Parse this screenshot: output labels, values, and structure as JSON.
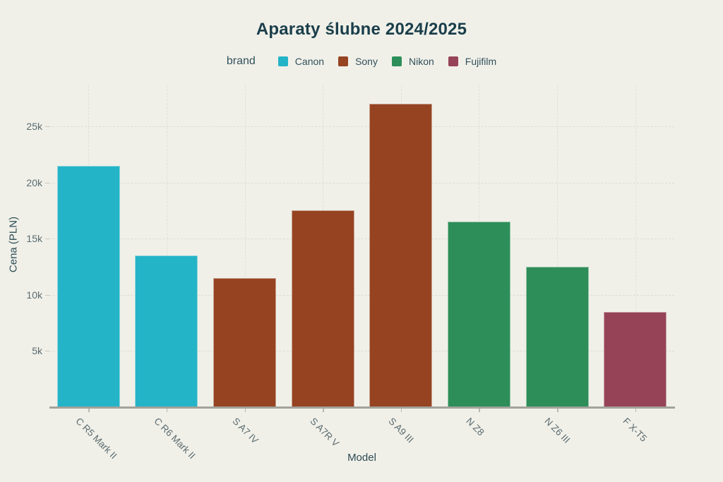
{
  "title": "Aparaty ślubne 2024/2025",
  "legend": {
    "label": "brand",
    "items": [
      {
        "name": "Canon",
        "color": "#24b4c8"
      },
      {
        "name": "Sony",
        "color": "#964322"
      },
      {
        "name": "Nikon",
        "color": "#2d8e59"
      },
      {
        "name": "Fujifilm",
        "color": "#964357"
      }
    ]
  },
  "chart_data": {
    "type": "bar",
    "title": "Aparaty ślubne 2024/2025",
    "xlabel": "Model",
    "ylabel": "Cena (PLN)",
    "legend_title": "brand",
    "legend_position": "top",
    "grid": true,
    "ylim": [
      0,
      28650
    ],
    "yticks": [
      {
        "value": 5000,
        "label": "5k"
      },
      {
        "value": 10000,
        "label": "10k"
      },
      {
        "value": 15000,
        "label": "15k"
      },
      {
        "value": 20000,
        "label": "20k"
      },
      {
        "value": 25000,
        "label": "25k"
      }
    ],
    "bars": [
      {
        "model": "C R5 Mark II",
        "brand": "Canon",
        "value": 21500
      },
      {
        "model": "C R6 Mark II",
        "brand": "Canon",
        "value": 13500
      },
      {
        "model": "S A7 IV",
        "brand": "Sony",
        "value": 11500
      },
      {
        "model": "S A7R V",
        "brand": "Sony",
        "value": 17500
      },
      {
        "model": "S A9 III",
        "brand": "Sony",
        "value": 27000
      },
      {
        "model": "N Z8",
        "brand": "Nikon",
        "value": 16500
      },
      {
        "model": "N Z6 III",
        "brand": "Nikon",
        "value": 12500
      },
      {
        "model": "F X-T5",
        "brand": "Fujifilm",
        "value": 8500
      }
    ],
    "colors": {
      "background": "#f0f0e9",
      "title_text": "#1a3e4a",
      "axis_title_text": "#2d4b53",
      "tick_text": "#5c6b6f",
      "axis_line": "#a3a39b",
      "gridline": "#dcddd5"
    }
  }
}
